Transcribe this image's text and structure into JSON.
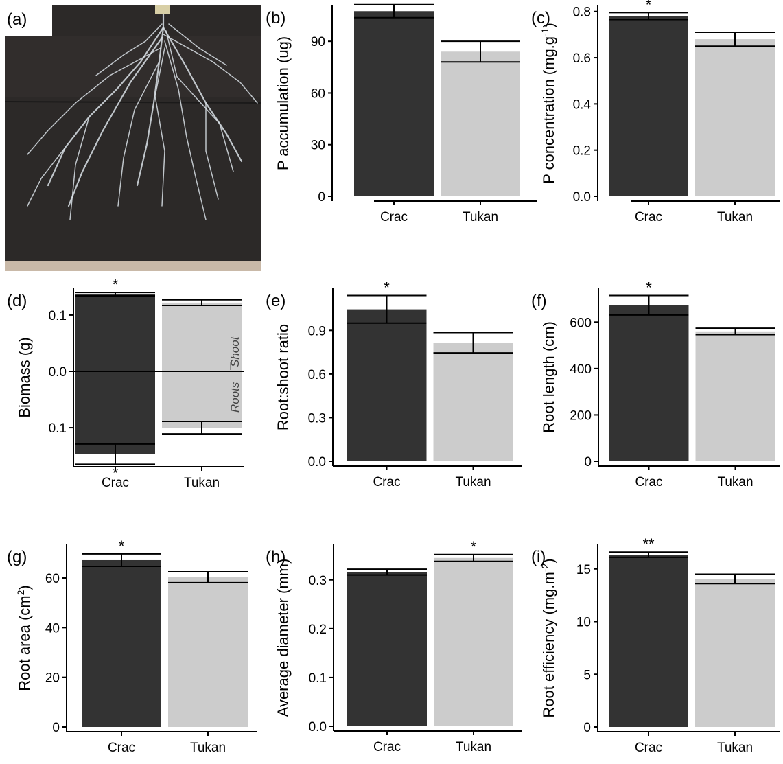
{
  "colors": {
    "Crac": "#333333",
    "Tukan": "#cccccc",
    "soil": "#2c2928",
    "root": "#d9e0e6"
  },
  "photo_panel": {
    "letter": "(a)",
    "subject": "root system in soil rhizobox"
  },
  "chart_data": [
    {
      "letter": "(b)",
      "type": "bar",
      "categories": [
        "Crac",
        "Tukan"
      ],
      "ylabel": "P accumulation (ug)",
      "ylabel_parts": [
        "P accumulation (ug)"
      ],
      "ylim": [
        0,
        110
      ],
      "yticks": [
        "0",
        "30",
        "60",
        "90"
      ],
      "ytick_values": [
        0,
        30,
        60,
        90
      ],
      "values": [
        107.5,
        84
      ],
      "errors": [
        3.8,
        6
      ],
      "significance": [
        "**",
        ""
      ]
    },
    {
      "letter": "(c)",
      "type": "bar",
      "categories": [
        "Crac",
        "Tukan"
      ],
      "ylabel": "P concentration (mg.g-1)",
      "ylabel_parts": [
        "P concentration (mg.g",
        "-1",
        ")"
      ],
      "ylim": [
        0,
        0.82
      ],
      "yticks": [
        "0.0",
        "0.2",
        "0.4",
        "0.6",
        "0.8"
      ],
      "ytick_values": [
        0,
        0.2,
        0.4,
        0.6,
        0.8
      ],
      "values": [
        0.78,
        0.68
      ],
      "errors": [
        0.015,
        0.03
      ],
      "significance": [
        "*",
        ""
      ]
    },
    {
      "letter": "(d)",
      "type": "bar",
      "subtype": "diverging",
      "categories": [
        "Crac",
        "Tukan"
      ],
      "ylabel": "Biomass (g)",
      "ylabel_parts": [
        "Biomass (g)"
      ],
      "ylim": [
        -0.165,
        0.145
      ],
      "yticks": [
        "0.1",
        "0.0",
        "0.1"
      ],
      "ytick_values": [
        0.1,
        0,
        -0.1
      ],
      "series": [
        {
          "name": "Shoot",
          "values": [
            0.137,
            0.122
          ],
          "errors": [
            0.003,
            0.005
          ],
          "significance": [
            "*",
            ""
          ]
        },
        {
          "name": "Roots",
          "values": [
            -0.147,
            -0.1
          ],
          "errors": [
            0.018,
            0.011
          ],
          "significance": [
            "*",
            ""
          ]
        }
      ],
      "side_labels": [
        "Roots",
        "Shoot"
      ]
    },
    {
      "letter": "(e)",
      "type": "bar",
      "categories": [
        "Crac",
        "Tukan"
      ],
      "ylabel": "Root:shoot ratio",
      "ylabel_parts": [
        "Root:shoot ratio"
      ],
      "ylim": [
        0,
        1.18
      ],
      "yticks": [
        "0.0",
        "0.3",
        "0.6",
        "0.9"
      ],
      "ytick_values": [
        0,
        0.3,
        0.6,
        0.9
      ],
      "values": [
        1.045,
        0.815
      ],
      "errors": [
        0.095,
        0.07
      ],
      "significance": [
        "*",
        ""
      ]
    },
    {
      "letter": "(f)",
      "type": "bar",
      "categories": [
        "Crac",
        "Tukan"
      ],
      "ylabel": "Root length (cm)",
      "ylabel_parts": [
        "Root length (cm)"
      ],
      "ylim": [
        0,
        740
      ],
      "yticks": [
        "0",
        "200",
        "400",
        "600"
      ],
      "ytick_values": [
        0,
        200,
        400,
        600
      ],
      "values": [
        673,
        560
      ],
      "errors": [
        42,
        14
      ],
      "significance": [
        "*",
        ""
      ]
    },
    {
      "letter": "(g)",
      "type": "bar",
      "categories": [
        "Crac",
        "Tukan"
      ],
      "ylabel": "Root area (cm2)",
      "ylabel_parts": [
        "Root area (cm",
        "2",
        ")"
      ],
      "ylim": [
        0,
        73
      ],
      "yticks": [
        "0",
        "20",
        "40",
        "60"
      ],
      "ytick_values": [
        0,
        20,
        40,
        60
      ],
      "values": [
        67.2,
        60.3
      ],
      "errors": [
        2.5,
        2.2
      ],
      "significance": [
        "*",
        ""
      ]
    },
    {
      "letter": "(h)",
      "type": "bar",
      "categories": [
        "Crac",
        "Tukan"
      ],
      "ylabel": "Average diameter (mm)",
      "ylabel_parts": [
        "Average diameter (mm)"
      ],
      "ylim": [
        0,
        0.37
      ],
      "yticks": [
        "0.0",
        "0.1",
        "0.2",
        "0.3"
      ],
      "ytick_values": [
        0,
        0.1,
        0.2,
        0.3
      ],
      "values": [
        0.316,
        0.345
      ],
      "errors": [
        0.006,
        0.007
      ],
      "significance": [
        "",
        "*"
      ]
    },
    {
      "letter": "(i)",
      "type": "bar",
      "categories": [
        "Crac",
        "Tukan"
      ],
      "ylabel": "Root efficiency (mg.m-2)",
      "ylabel_parts": [
        "Root efficiency (mg.m",
        "-2",
        ")"
      ],
      "ylim": [
        0,
        17.2
      ],
      "yticks": [
        "0",
        "5",
        "10",
        "15"
      ],
      "ytick_values": [
        0,
        5,
        10,
        15
      ],
      "values": [
        16.35,
        14.05
      ],
      "errors": [
        0.25,
        0.45
      ],
      "significance": [
        "**",
        ""
      ]
    }
  ]
}
